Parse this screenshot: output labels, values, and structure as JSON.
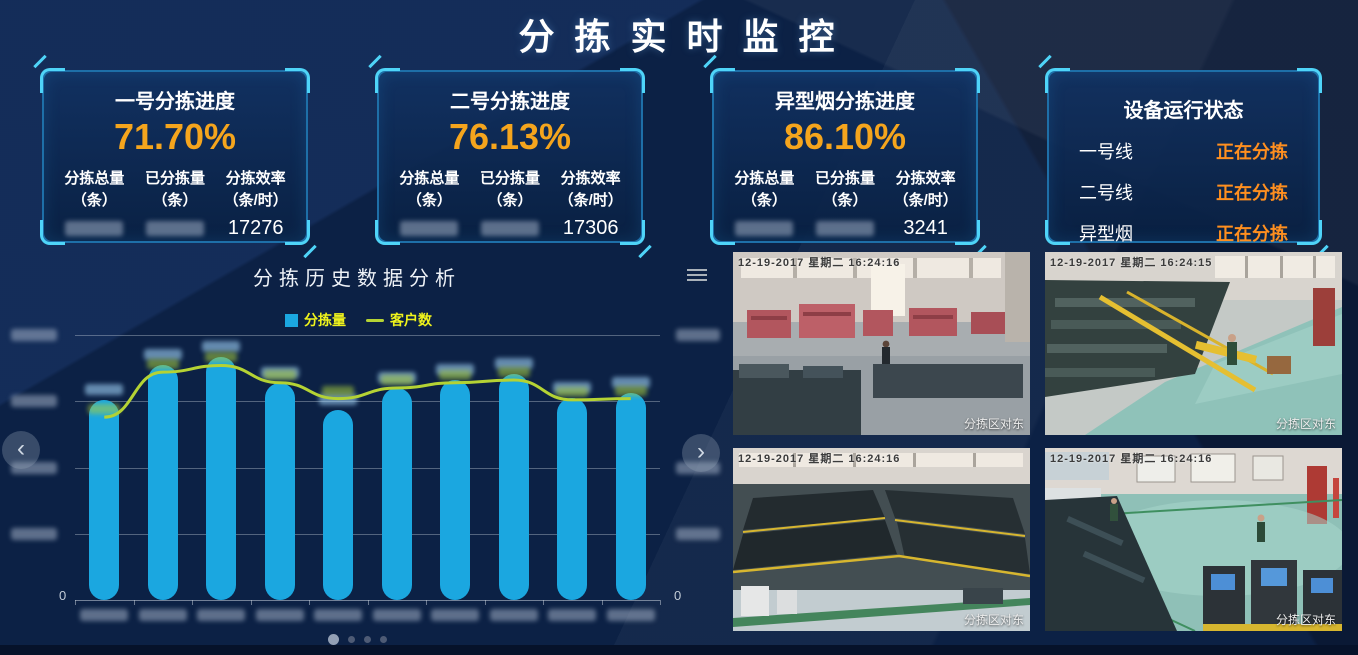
{
  "header": {
    "title": "分 拣 实 时 监 控"
  },
  "cards": [
    {
      "title": "一号分拣进度",
      "percent": "71.70%",
      "columns": [
        {
          "label": "分拣总量",
          "unit": "（条）"
        },
        {
          "label": "已分拣量",
          "unit": "（条）"
        },
        {
          "label": "分拣效率",
          "unit": "（条/时）"
        }
      ],
      "values": [
        {
          "redacted": true,
          "text": ""
        },
        {
          "redacted": true,
          "text": ""
        },
        {
          "redacted": false,
          "text": "17276"
        }
      ]
    },
    {
      "title": "二号分拣进度",
      "percent": "76.13%",
      "columns": [
        {
          "label": "分拣总量",
          "unit": "（条）"
        },
        {
          "label": "已分拣量",
          "unit": "（条）"
        },
        {
          "label": "分拣效率",
          "unit": "（条/时）"
        }
      ],
      "values": [
        {
          "redacted": true,
          "text": ""
        },
        {
          "redacted": true,
          "text": ""
        },
        {
          "redacted": false,
          "text": "17306"
        }
      ]
    },
    {
      "title": "异型烟分拣进度",
      "percent": "86.10%",
      "columns": [
        {
          "label": "分拣总量",
          "unit": "（条）"
        },
        {
          "label": "已分拣量",
          "unit": "（条）"
        },
        {
          "label": "分拣效率",
          "unit": "（条/时）"
        }
      ],
      "values": [
        {
          "redacted": true,
          "text": ""
        },
        {
          "redacted": true,
          "text": ""
        },
        {
          "redacted": false,
          "text": "3241"
        }
      ]
    }
  ],
  "status_card": {
    "title": "设备运行状态",
    "rows": [
      {
        "label": "一号线",
        "status": "正在分拣"
      },
      {
        "label": "二号线",
        "status": "正在分拣"
      },
      {
        "label": "异型烟",
        "status": "正在分拣"
      }
    ]
  },
  "chart_panel": {
    "title": "分拣历史数据分析",
    "menu_icon": "hamburger-icon",
    "legend": [
      {
        "label": "分拣量"
      },
      {
        "label": "客户数"
      }
    ],
    "y_left_zero": "0",
    "y_right_zero": "0",
    "nav_prev": "‹",
    "nav_next": "›",
    "pagination": {
      "count": 4,
      "active": 0
    }
  },
  "chart_data": {
    "type": "bar",
    "title": "分拣历史数据分析",
    "x_count": 10,
    "x_labels": "redacted (blurred in source)",
    "series": [
      {
        "name": "分拣量",
        "type": "bar",
        "color": "#1ba7e0",
        "axis": "left",
        "values": [
          18100,
          21300,
          22000,
          19650,
          17200,
          19200,
          19900,
          20450,
          18300,
          18750
        ],
        "value_labels": "redacted (blurred in source)"
      },
      {
        "name": "客户数",
        "type": "line",
        "color": "#b5d334",
        "axis": "right",
        "values": [
          138,
          172,
          177,
          164,
          152,
          160,
          164,
          166,
          151,
          152
        ],
        "value_labels": "redacted (blurred in source)"
      }
    ],
    "y_left": {
      "min": 0,
      "max": 24000,
      "tick_labels": "redacted except 0"
    },
    "y_right": {
      "min": 0,
      "max": 200,
      "tick_labels": "redacted except 0"
    },
    "grid": true,
    "legend_position": "top"
  },
  "cameras": [
    {
      "timestamp": "12-19-2017 星期二 16:24:16",
      "caption": "分拣区对东"
    },
    {
      "timestamp": "12-19-2017 星期二 16:24:15",
      "caption": "分拣区对东"
    },
    {
      "timestamp": "12-19-2017 星期二 16:24:16",
      "caption": "分拣区对东"
    },
    {
      "timestamp": "12-19-2017 星期二 16:24:16",
      "caption": "分拣区对东"
    }
  ],
  "colors": {
    "background": "#0c2145",
    "card_border": "#1e6fa8",
    "corner_accent": "#4fd4f8",
    "percent_orange": "#f5a51d",
    "status_orange": "#ff8f1f",
    "bar_blue": "#1ba7e0",
    "line_green": "#b5d334",
    "legend_text": "#eff31c"
  }
}
